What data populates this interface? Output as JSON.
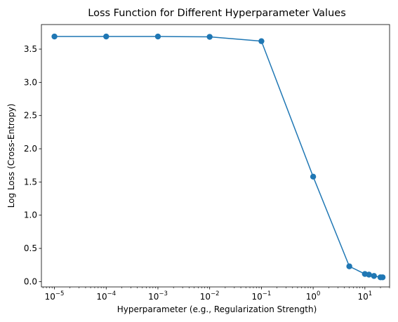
{
  "chart_data": {
    "type": "line",
    "title": "Loss Function for Different Hyperparameter Values",
    "xlabel": "Hyperparameter (e.g., Regularization Strength)",
    "ylabel": "Log Loss (Cross-Entropy)",
    "xscale": "log",
    "xlim": [
      5.6e-06,
      30
    ],
    "ylim": [
      -0.08,
      3.87
    ],
    "x_ticks": [
      {
        "value": 1e-05,
        "base": "10",
        "exp": "−5"
      },
      {
        "value": 0.0001,
        "base": "10",
        "exp": "−4"
      },
      {
        "value": 0.001,
        "base": "10",
        "exp": "−3"
      },
      {
        "value": 0.01,
        "base": "10",
        "exp": "−2"
      },
      {
        "value": 0.1,
        "base": "10",
        "exp": "−1"
      },
      {
        "value": 1,
        "base": "10",
        "exp": "0"
      },
      {
        "value": 10,
        "base": "10",
        "exp": "1"
      }
    ],
    "y_ticks": [
      {
        "value": 0.0,
        "label": "0.0"
      },
      {
        "value": 0.5,
        "label": "0.5"
      },
      {
        "value": 1.0,
        "label": "1.0"
      },
      {
        "value": 1.5,
        "label": "1.5"
      },
      {
        "value": 2.0,
        "label": "2.0"
      },
      {
        "value": 2.5,
        "label": "2.5"
      },
      {
        "value": 3.0,
        "label": "3.0"
      },
      {
        "value": 3.5,
        "label": "3.5"
      }
    ],
    "series": [
      {
        "color": "#1f77b4",
        "marker": "circle",
        "x": [
          1e-05,
          0.0001,
          0.001,
          0.01,
          0.1,
          1,
          5,
          10,
          12,
          15,
          20,
          22
        ],
        "y": [
          3.69,
          3.69,
          3.69,
          3.685,
          3.62,
          1.58,
          0.23,
          0.115,
          0.105,
          0.085,
          0.065,
          0.065
        ]
      }
    ],
    "grid": false,
    "legend": "none"
  }
}
